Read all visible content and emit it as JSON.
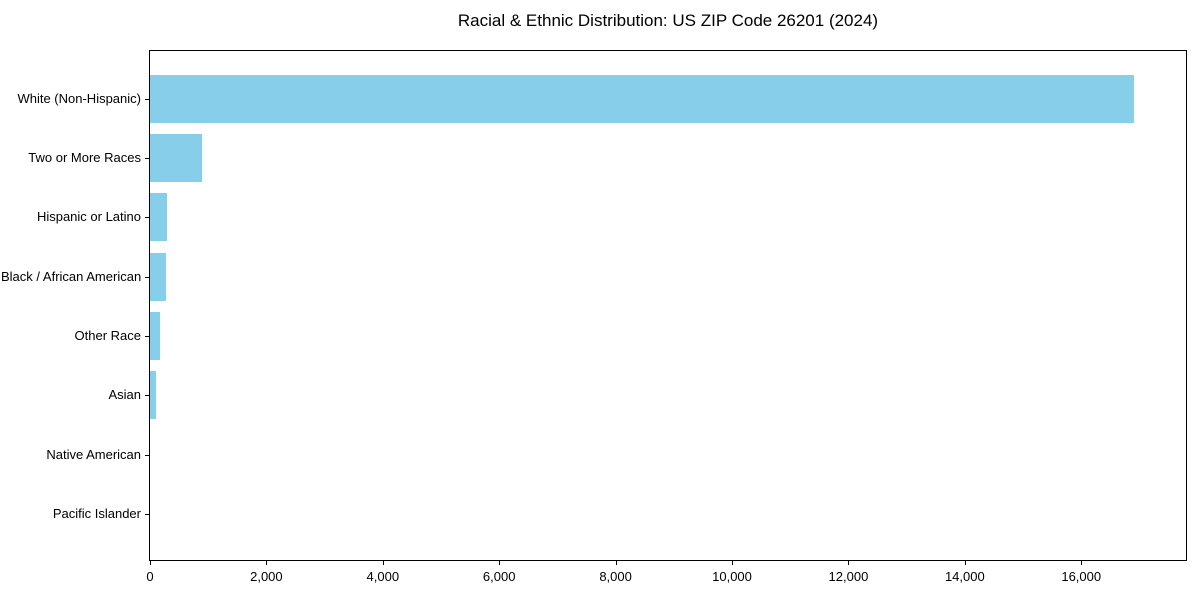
{
  "chart_data": {
    "type": "bar",
    "orientation": "horizontal",
    "title": "Racial & Ethnic Distribution: US ZIP Code 26201 (2024)",
    "categories": [
      "White (Non-Hispanic)",
      "Two or More Races",
      "Hispanic or Latino",
      "Black / African American",
      "Other Race",
      "Asian",
      "Native American",
      "Pacific Islander"
    ],
    "values": [
      16900,
      890,
      290,
      275,
      165,
      100,
      0,
      0
    ],
    "xlabel": "",
    "ylabel": "",
    "xlim": [
      0,
      17800
    ],
    "x_ticks": [
      0,
      2000,
      4000,
      6000,
      8000,
      10000,
      12000,
      14000,
      16000
    ],
    "x_tick_labels": [
      "0",
      "2,000",
      "4,000",
      "6,000",
      "8,000",
      "10,000",
      "12,000",
      "14,000",
      "16,000"
    ],
    "bar_color": "#87CEEB",
    "text_color": "#000000",
    "spine_color": "#000000",
    "background_color": "#ffffff",
    "grid": false,
    "legend": null
  }
}
